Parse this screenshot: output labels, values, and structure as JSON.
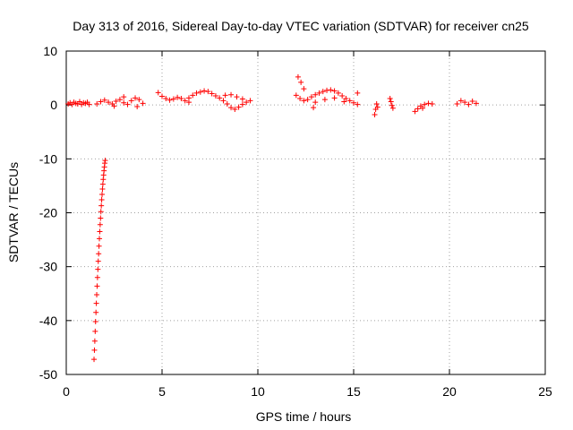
{
  "chart_data": {
    "type": "scatter",
    "title": "Day 313 of 2016, Sidereal Day-to-day VTEC variation (SDTVAR) for receiver cn25",
    "xlabel": "GPS time / hours",
    "ylabel": "SDTVAR / TECUs",
    "xlim": [
      0,
      25
    ],
    "ylim": [
      -50,
      10
    ],
    "xticks": [
      0,
      5,
      10,
      15,
      20,
      25
    ],
    "yticks": [
      -50,
      -40,
      -30,
      -20,
      -10,
      0,
      10
    ],
    "xtick_labels": [
      "0",
      "5",
      "10",
      "15",
      "20",
      "25"
    ],
    "ytick_labels": [
      "-50",
      "-40",
      "-30",
      "-20",
      "-10",
      "0",
      "10"
    ],
    "grid": true,
    "marker": "+",
    "series": [
      {
        "name": "SDTVAR",
        "color": "#ff0000",
        "points": [
          [
            0.1,
            0.2
          ],
          [
            0.2,
            0.4
          ],
          [
            0.3,
            0.1
          ],
          [
            0.4,
            0.5
          ],
          [
            0.5,
            0.3
          ],
          [
            0.6,
            0.2
          ],
          [
            0.7,
            0.6
          ],
          [
            0.8,
            0.1
          ],
          [
            0.9,
            0.4
          ],
          [
            1.0,
            0.3
          ],
          [
            1.1,
            0.5
          ],
          [
            1.2,
            0.1
          ],
          [
            1.45,
            -47.2
          ],
          [
            1.47,
            -45.5
          ],
          [
            1.49,
            -43.8
          ],
          [
            1.51,
            -42.0
          ],
          [
            1.53,
            -40.2
          ],
          [
            1.55,
            -38.5
          ],
          [
            1.57,
            -36.8
          ],
          [
            1.59,
            -35.2
          ],
          [
            1.61,
            -33.6
          ],
          [
            1.63,
            -32.0
          ],
          [
            1.65,
            -30.5
          ],
          [
            1.67,
            -29.0
          ],
          [
            1.69,
            -27.6
          ],
          [
            1.71,
            -26.2
          ],
          [
            1.73,
            -24.8
          ],
          [
            1.75,
            -23.5
          ],
          [
            1.77,
            -22.2
          ],
          [
            1.79,
            -21.0
          ],
          [
            1.81,
            -19.8
          ],
          [
            1.83,
            -18.7
          ],
          [
            1.85,
            -17.6
          ],
          [
            1.87,
            -16.6
          ],
          [
            1.89,
            -15.6
          ],
          [
            1.91,
            -14.7
          ],
          [
            1.93,
            -13.8
          ],
          [
            1.95,
            -13.0
          ],
          [
            1.97,
            -12.2
          ],
          [
            1.99,
            -11.5
          ],
          [
            2.01,
            -10.8
          ],
          [
            2.03,
            -10.3
          ],
          [
            1.6,
            0.2
          ],
          [
            1.8,
            0.6
          ],
          [
            2.0,
            0.9
          ],
          [
            2.2,
            0.5
          ],
          [
            2.4,
            0.2
          ],
          [
            2.6,
            0.7
          ],
          [
            2.8,
            1.0
          ],
          [
            3.0,
            0.4
          ],
          [
            3.2,
            0.1
          ],
          [
            3.4,
            0.8
          ],
          [
            3.6,
            1.3
          ],
          [
            3.8,
            1.0
          ],
          [
            4.0,
            0.3
          ],
          [
            2.5,
            -0.2
          ],
          [
            3.0,
            1.5
          ],
          [
            3.7,
            -0.3
          ],
          [
            4.8,
            2.3
          ],
          [
            5.0,
            1.6
          ],
          [
            5.2,
            1.2
          ],
          [
            5.4,
            0.9
          ],
          [
            5.6,
            1.1
          ],
          [
            5.8,
            1.4
          ],
          [
            6.0,
            1.2
          ],
          [
            6.2,
            0.8
          ],
          [
            6.4,
            0.5
          ],
          [
            6.4,
            1.3
          ],
          [
            6.6,
            1.8
          ],
          [
            6.8,
            2.2
          ],
          [
            7.0,
            2.4
          ],
          [
            7.2,
            2.6
          ],
          [
            7.4,
            2.5
          ],
          [
            7.6,
            2.1
          ],
          [
            7.8,
            1.7
          ],
          [
            8.0,
            1.3
          ],
          [
            8.2,
            0.8
          ],
          [
            8.4,
            0.2
          ],
          [
            8.6,
            -0.5
          ],
          [
            8.8,
            -0.8
          ],
          [
            9.0,
            -0.4
          ],
          [
            9.2,
            0.1
          ],
          [
            9.4,
            0.5
          ],
          [
            9.6,
            0.8
          ],
          [
            8.3,
            1.8
          ],
          [
            8.6,
            1.9
          ],
          [
            8.9,
            1.5
          ],
          [
            9.2,
            1.1
          ],
          [
            12.1,
            5.2
          ],
          [
            12.25,
            4.2
          ],
          [
            12.4,
            3.0
          ],
          [
            12.0,
            1.8
          ],
          [
            12.2,
            1.2
          ],
          [
            12.4,
            0.8
          ],
          [
            12.6,
            1.0
          ],
          [
            12.8,
            1.5
          ],
          [
            13.0,
            1.9
          ],
          [
            13.2,
            2.2
          ],
          [
            13.4,
            2.5
          ],
          [
            13.6,
            2.7
          ],
          [
            13.8,
            2.8
          ],
          [
            14.0,
            2.6
          ],
          [
            14.2,
            2.2
          ],
          [
            14.4,
            1.7
          ],
          [
            14.6,
            1.2
          ],
          [
            14.8,
            0.8
          ],
          [
            15.0,
            0.4
          ],
          [
            15.2,
            0.1
          ],
          [
            13.0,
            0.5
          ],
          [
            13.5,
            1.0
          ],
          [
            14.0,
            1.3
          ],
          [
            14.5,
            0.6
          ],
          [
            12.9,
            -0.5
          ],
          [
            15.2,
            2.2
          ],
          [
            16.1,
            -1.8
          ],
          [
            16.15,
            -0.8
          ],
          [
            16.2,
            0.2
          ],
          [
            16.25,
            -0.4
          ],
          [
            16.9,
            1.2
          ],
          [
            16.95,
            0.6
          ],
          [
            17.0,
            -0.1
          ],
          [
            17.05,
            -0.6
          ],
          [
            18.2,
            -1.2
          ],
          [
            18.35,
            -0.7
          ],
          [
            18.5,
            -0.2
          ],
          [
            18.7,
            0.1
          ],
          [
            18.9,
            0.3
          ],
          [
            19.1,
            0.2
          ],
          [
            18.6,
            -0.6
          ],
          [
            20.4,
            0.2
          ],
          [
            20.6,
            0.8
          ],
          [
            20.8,
            0.5
          ],
          [
            21.0,
            0.1
          ],
          [
            21.2,
            0.7
          ],
          [
            21.4,
            0.3
          ]
        ]
      }
    ]
  }
}
